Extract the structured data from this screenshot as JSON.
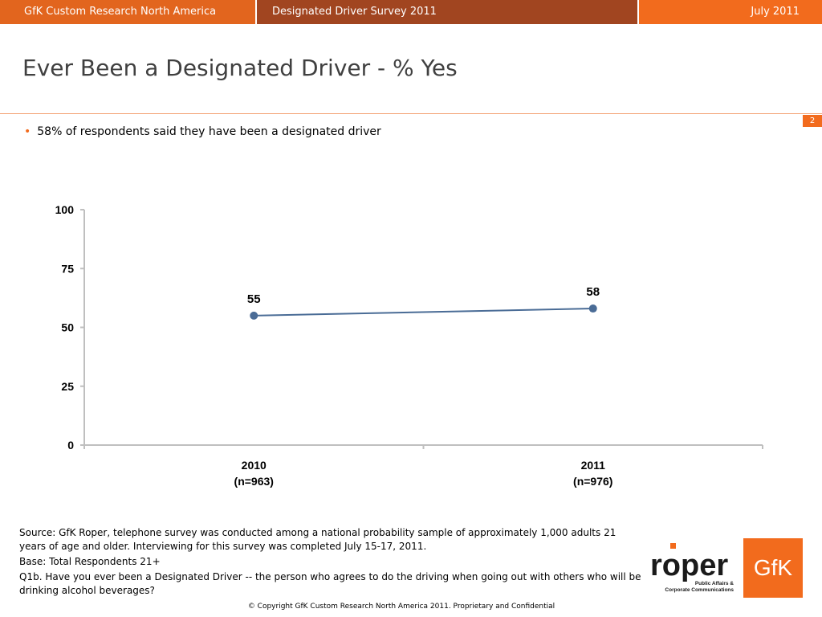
{
  "header": {
    "company": "GfK Custom Research North America",
    "survey": "Designated Driver Survey 2011",
    "date": "July 2011"
  },
  "slide": {
    "title": "Ever Been a Designated Driver - % Yes",
    "page_number": "2",
    "bullet": "58% of respondents said they have been a designated driver"
  },
  "chart_data": {
    "type": "line",
    "categories": [
      "2010\n(n=963)",
      "2011\n(n=976)"
    ],
    "series": [
      {
        "values": [
          55,
          58
        ]
      }
    ],
    "y_ticks": [
      "0",
      "25",
      "50",
      "75",
      "100"
    ],
    "ylim": [
      0,
      100
    ],
    "color": "#4A6C96",
    "data_labels": [
      "55",
      "58"
    ]
  },
  "footnotes": {
    "source": "Source: GfK Roper, telephone survey was conducted among a national probability sample of approximately 1,000 adults 21 years of age and older.  Interviewing for this survey was completed July 15-17, 2011.",
    "base": "Base: Total Respondents 21+",
    "question": "Q1b. Have you ever been a Designated Driver -- the person who agrees to do the driving when going out with others who will be drinking alcohol beverages?"
  },
  "copyright": "© Copyright GfK Custom Research North America 2011.  Proprietary and Confidential",
  "logos": {
    "roper": "roper",
    "roper_tagline_1": "Public Affairs &",
    "roper_tagline_2": "Corporate Communications",
    "gfk": "GfK"
  },
  "colors": {
    "accent": "#F26B1D",
    "header_dark": "#A14520",
    "series": "#4A6C96"
  }
}
